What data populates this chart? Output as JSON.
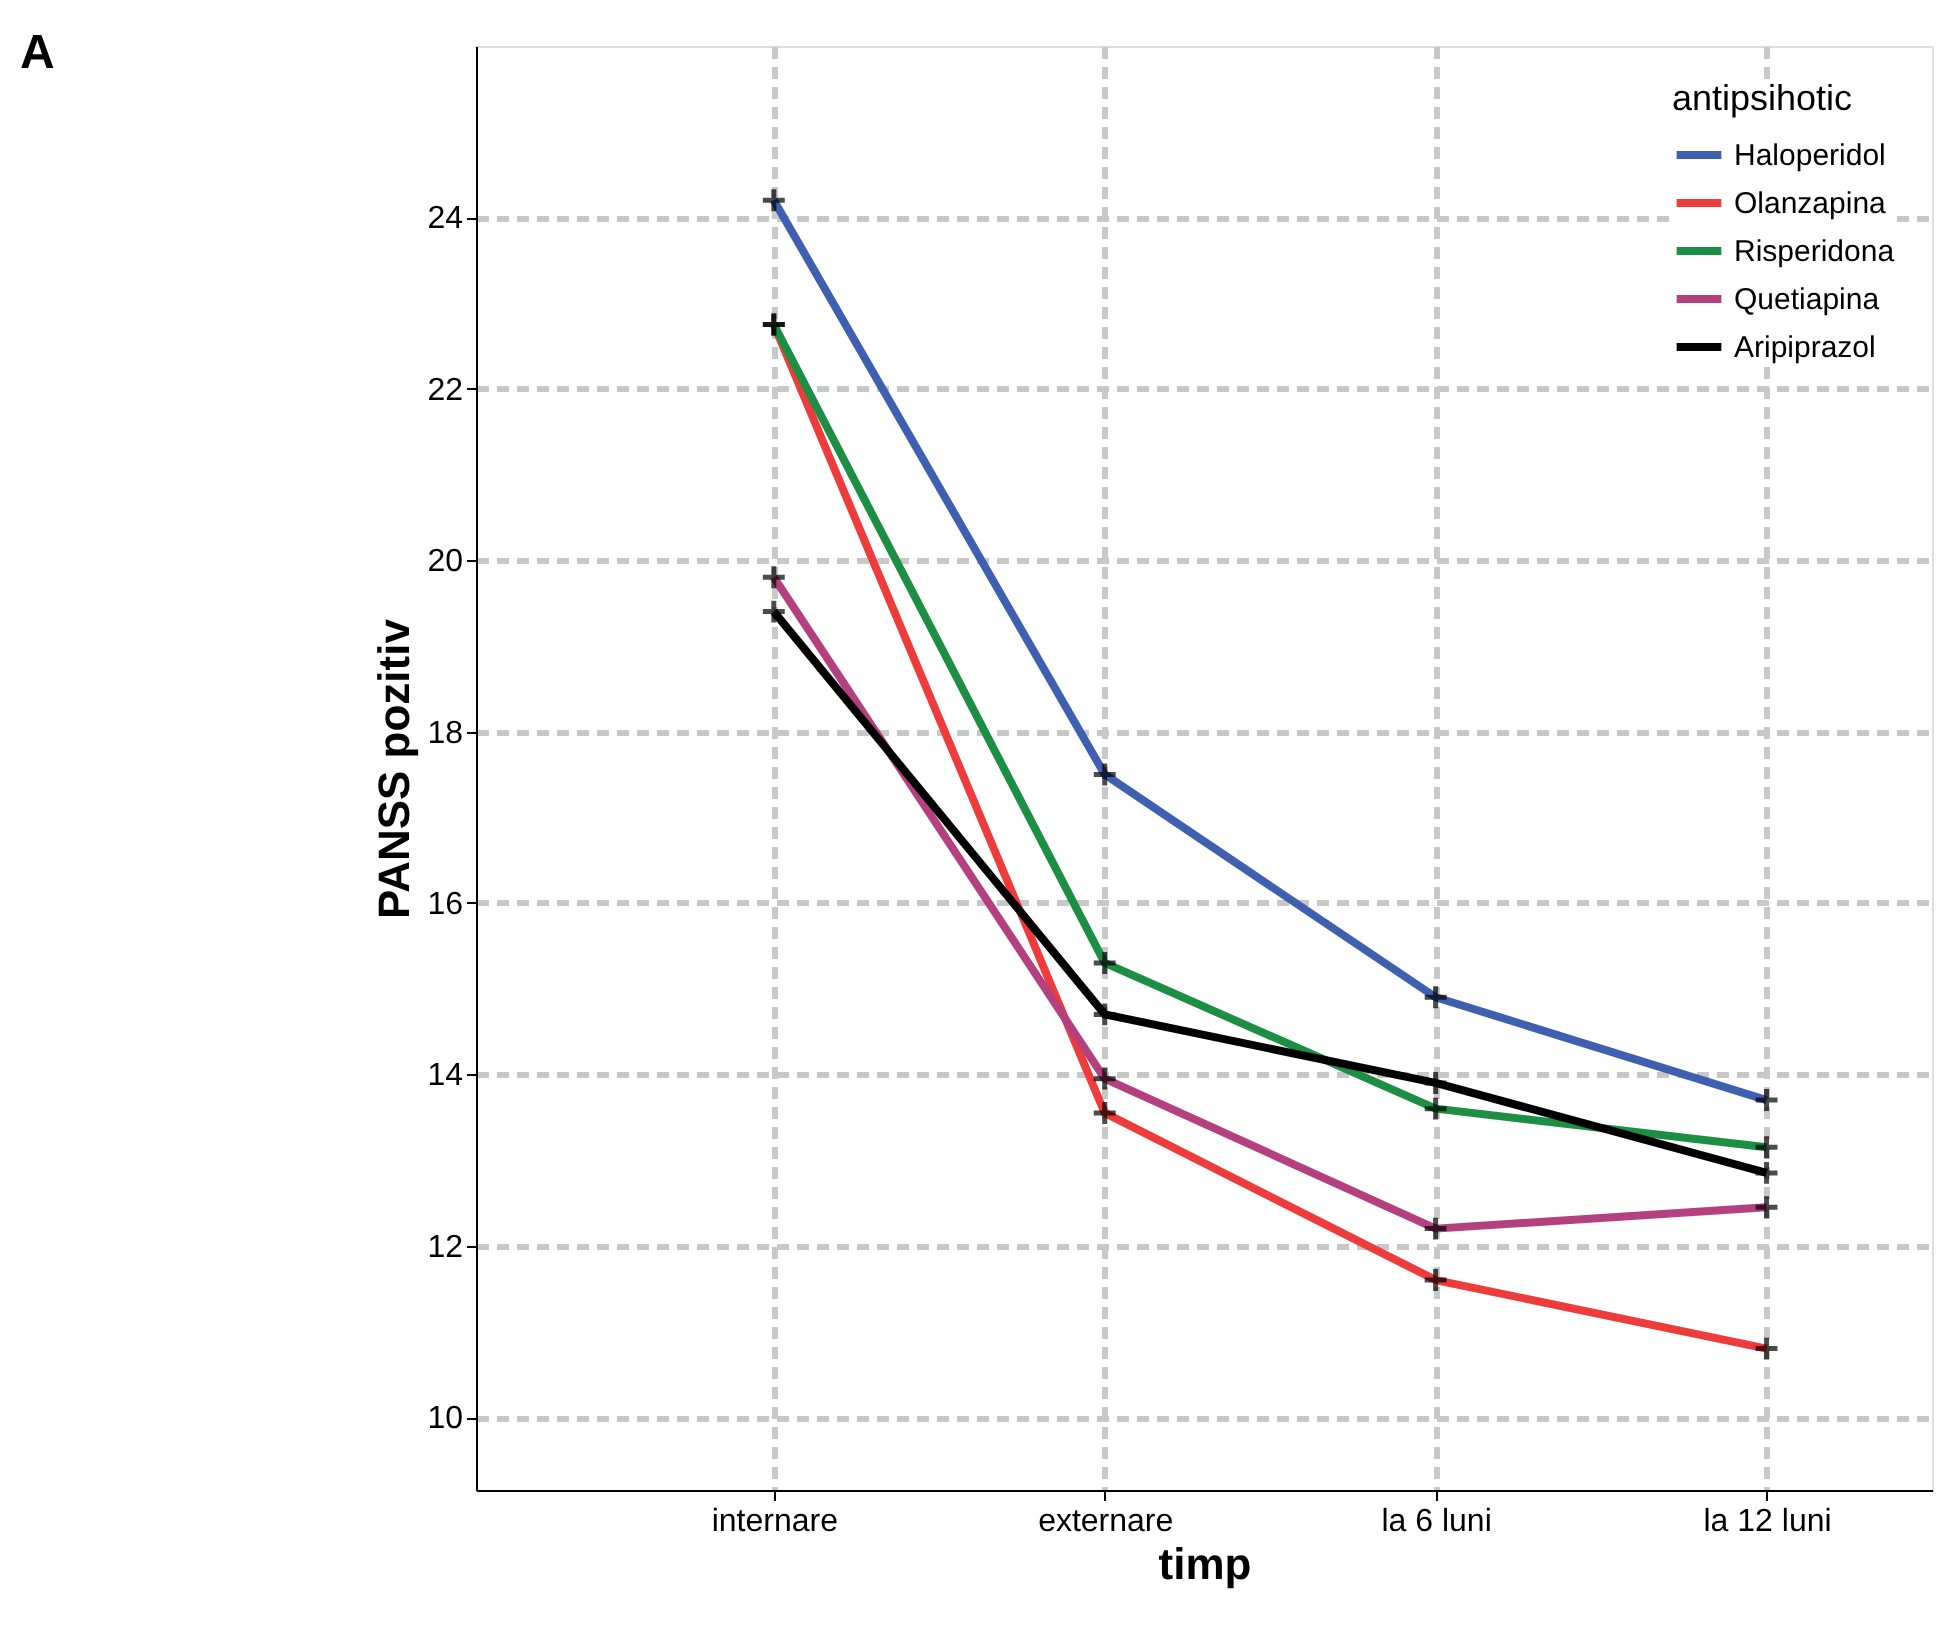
{
  "chart_data": {
    "type": "line",
    "xlabel": "timp",
    "ylabel": "PANSS pozitiv",
    "legend_title": "antipsihotic",
    "categories": [
      "internare",
      "externare",
      "la 6 luni",
      "la 12 luni"
    ],
    "series": [
      {
        "name": "Haloperidol",
        "color": "#3f5fb0",
        "values": [
          24.2,
          17.5,
          14.9,
          13.7
        ]
      },
      {
        "name": "Olanzapina",
        "color": "#ee3b3b",
        "values": [
          22.75,
          13.55,
          11.6,
          10.8
        ]
      },
      {
        "name": "Risperidona",
        "color": "#1d8f44",
        "values": [
          22.75,
          15.3,
          13.6,
          13.15
        ]
      },
      {
        "name": "Quetiapina",
        "color": "#b5407f",
        "values": [
          19.8,
          13.95,
          12.2,
          12.45
        ]
      },
      {
        "name": "Aripiprazol",
        "color": "#000000",
        "values": [
          19.4,
          14.7,
          13.9,
          12.85
        ]
      }
    ],
    "ylim": [
      9.15,
      26
    ],
    "yticks": [
      10,
      12,
      14,
      16,
      18,
      20,
      22,
      24
    ],
    "grid": true,
    "legend": "top right",
    "marker": "cross",
    "line_style": "solid",
    "annotations": [
      "A"
    ]
  }
}
